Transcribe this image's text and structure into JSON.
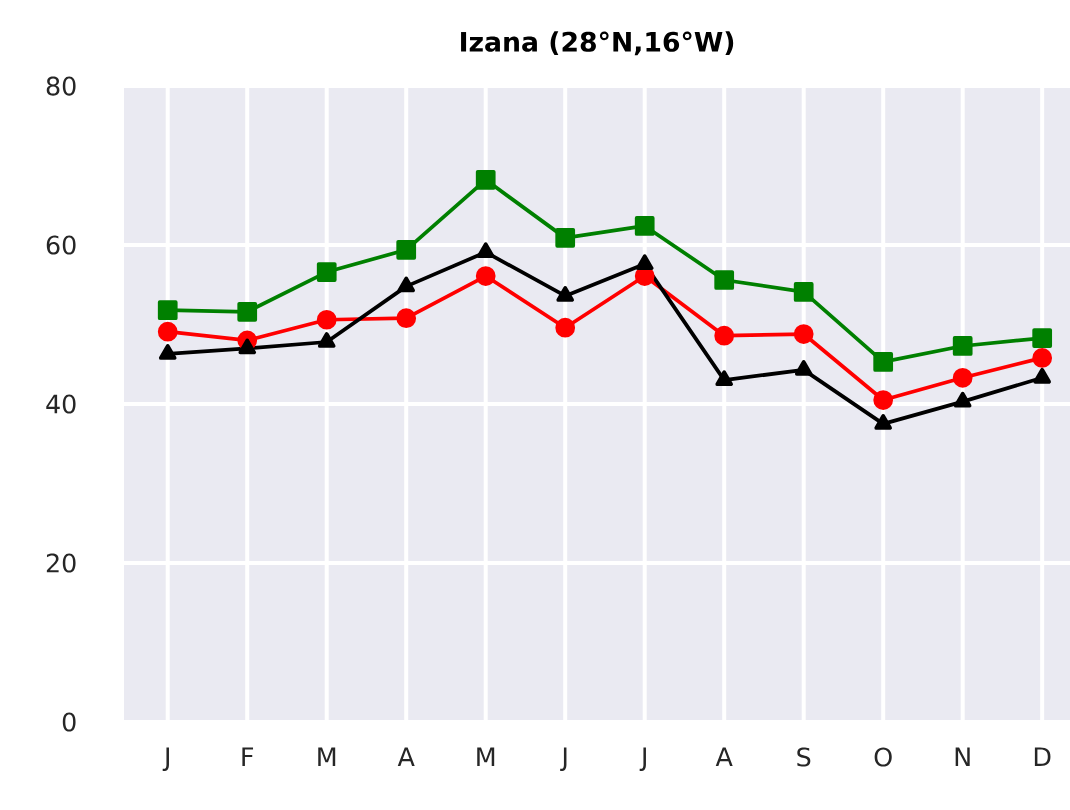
{
  "chart_data": {
    "type": "line",
    "title": "Izana (28°N,16°W)",
    "categories": [
      "J",
      "F",
      "M",
      "A",
      "M",
      "J",
      "J",
      "A",
      "S",
      "O",
      "N",
      "D"
    ],
    "series": [
      {
        "color": "#008000",
        "marker": "square",
        "values": [
          51.8,
          51.6,
          56.6,
          59.4,
          68.2,
          60.9,
          62.4,
          55.6,
          54.1,
          45.3,
          47.3,
          48.3
        ]
      },
      {
        "color": "#ff0000",
        "marker": "circle",
        "values": [
          49.1,
          48.0,
          50.6,
          50.8,
          56.1,
          49.6,
          56.1,
          48.6,
          48.8,
          40.5,
          43.3,
          45.8
        ]
      },
      {
        "color": "#000000",
        "marker": "triangle",
        "values": [
          46.3,
          47.0,
          47.8,
          54.8,
          59.1,
          53.6,
          57.6,
          43.0,
          44.3,
          37.5,
          40.3,
          43.3
        ]
      }
    ],
    "ylim": [
      0,
      80
    ],
    "yticks": [
      0,
      20,
      40,
      60,
      80
    ],
    "grid": true,
    "line_style": "solid"
  }
}
